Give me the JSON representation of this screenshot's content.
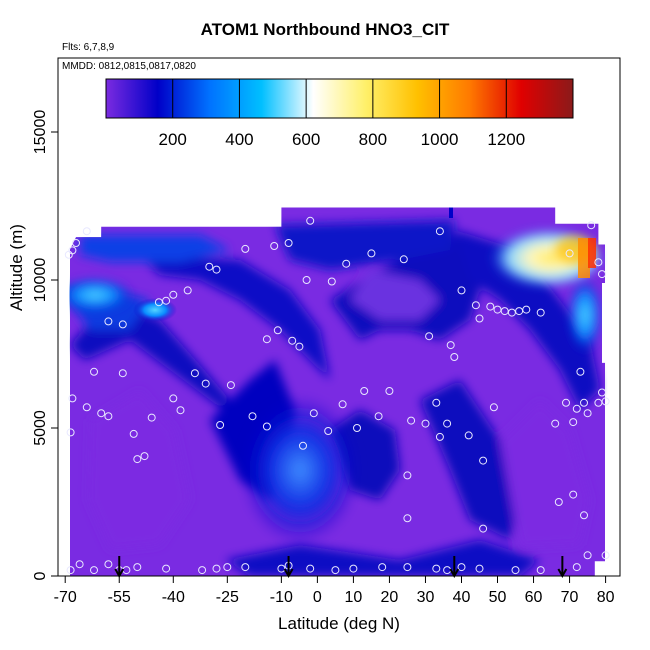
{
  "chart_data": {
    "type": "heatmap",
    "title": "ATOM1 Northbound HNO3_CIT",
    "annotations": [
      "Flts: 6,7,8,9",
      "MMDD: 0812,0815,0817,0820"
    ],
    "xlabel": "Latitude (deg N)",
    "ylabel": "Altitude (m)",
    "xlim": [
      -72,
      84
    ],
    "ylim": [
      0,
      17500
    ],
    "x_ticks": [
      -70,
      -55,
      -40,
      -25,
      -10,
      0,
      10,
      20,
      30,
      40,
      50,
      60,
      70,
      80
    ],
    "x_tick_labels": [
      "-70",
      "-55",
      "-40",
      "-25",
      "-10",
      "0",
      "10",
      "20",
      "30",
      "40",
      "50",
      "60",
      "70",
      "80"
    ],
    "y_ticks": [
      0,
      5000,
      10000,
      15000
    ],
    "y_tick_labels": [
      "0",
      "5000",
      "10000",
      "15000"
    ],
    "colorbar": {
      "range": [
        0,
        1400
      ],
      "ticks": [
        200,
        400,
        600,
        800,
        1000,
        1200
      ],
      "tick_labels": [
        "200",
        "400",
        "600",
        "800",
        "1000",
        "1200"
      ],
      "colors": [
        "#7B2BE0",
        "#0000C8",
        "#0072FF",
        "#00BFFF",
        "#FFFFFF",
        "#FFF06A",
        "#FFC000",
        "#FF7A00",
        "#E00000",
        "#8B1A1A"
      ]
    },
    "profile_markers_latitude": [
      -55,
      -8,
      38,
      68
    ],
    "sample_points": [
      [
        -68.5,
        200
      ],
      [
        -66,
        400
      ],
      [
        -62,
        200
      ],
      [
        -58,
        400
      ],
      [
        -55,
        200
      ],
      [
        -53,
        200
      ],
      [
        -50,
        300
      ],
      [
        -42,
        250
      ],
      [
        -32,
        200
      ],
      [
        -28,
        250
      ],
      [
        -25,
        300
      ],
      [
        -20,
        300
      ],
      [
        -10,
        250
      ],
      [
        -8,
        350
      ],
      [
        -2,
        250
      ],
      [
        5,
        200
      ],
      [
        10,
        250
      ],
      [
        18,
        300
      ],
      [
        25,
        300
      ],
      [
        33,
        250
      ],
      [
        36,
        200
      ],
      [
        40,
        300
      ],
      [
        45,
        250
      ],
      [
        55,
        200
      ],
      [
        62,
        200
      ],
      [
        72,
        300
      ],
      [
        75,
        700
      ],
      [
        80,
        700
      ],
      [
        -68.5,
        4850
      ],
      [
        -68,
        6000
      ],
      [
        -64,
        5700
      ],
      [
        -62,
        6900
      ],
      [
        -60,
        5500
      ],
      [
        -58,
        5400
      ],
      [
        -54,
        6850
      ],
      [
        -51,
        4800
      ],
      [
        -50,
        3950
      ],
      [
        -48,
        4050
      ],
      [
        -46,
        5350
      ],
      [
        -40,
        6000
      ],
      [
        -38,
        5600
      ],
      [
        -34,
        6850
      ],
      [
        -31,
        6500
      ],
      [
        -27,
        5100
      ],
      [
        -24,
        6450
      ],
      [
        -18,
        5400
      ],
      [
        -14,
        5050
      ],
      [
        -4,
        4400
      ],
      [
        -1,
        5500
      ],
      [
        3,
        4900
      ],
      [
        7,
        5800
      ],
      [
        11,
        5000
      ],
      [
        13,
        6250
      ],
      [
        17,
        5400
      ],
      [
        20,
        6250
      ],
      [
        26,
        5250
      ],
      [
        30,
        5150
      ],
      [
        33,
        5850
      ],
      [
        34,
        4700
      ],
      [
        36,
        5150
      ],
      [
        42,
        4750
      ],
      [
        46,
        3900
      ],
      [
        49,
        5700
      ],
      [
        66,
        5150
      ],
      [
        69,
        5850
      ],
      [
        71,
        5200
      ],
      [
        72,
        5650
      ],
      [
        74,
        5850
      ],
      [
        75,
        5500
      ],
      [
        78,
        5850
      ],
      [
        79,
        6200
      ],
      [
        80,
        5900
      ],
      [
        46,
        1600
      ],
      [
        25,
        1950
      ],
      [
        67,
        2500
      ],
      [
        71,
        2750
      ],
      [
        74,
        2050
      ],
      [
        25,
        3400
      ],
      [
        -58,
        8600
      ],
      [
        -54,
        8500
      ],
      [
        -44,
        9250
      ],
      [
        -42,
        9300
      ],
      [
        -40,
        9500
      ],
      [
        -36,
        9650
      ],
      [
        -30,
        10450
      ],
      [
        -28,
        10350
      ],
      [
        -20,
        11050
      ],
      [
        -12,
        11150
      ],
      [
        -8,
        11250
      ],
      [
        -14,
        8000
      ],
      [
        -11,
        8300
      ],
      [
        -7,
        7950
      ],
      [
        -5,
        7750
      ],
      [
        -3,
        10000
      ],
      [
        4,
        9950
      ],
      [
        8,
        10550
      ],
      [
        15,
        10900
      ],
      [
        24,
        10700
      ],
      [
        31,
        8100
      ],
      [
        34,
        11650
      ],
      [
        37,
        7800
      ],
      [
        38,
        7400
      ],
      [
        40,
        9650
      ],
      [
        44,
        9150
      ],
      [
        45,
        8700
      ],
      [
        48,
        9100
      ],
      [
        50,
        9000
      ],
      [
        52,
        8950
      ],
      [
        54,
        8900
      ],
      [
        56,
        8950
      ],
      [
        58,
        9000
      ],
      [
        62,
        8900
      ],
      [
        70,
        10900
      ],
      [
        73,
        6900
      ],
      [
        76,
        11850
      ],
      [
        78,
        10600
      ],
      [
        79,
        10200
      ],
      [
        -64,
        11650
      ],
      [
        -67,
        11250
      ],
      [
        -68,
        11000
      ],
      [
        -69,
        10850
      ],
      [
        -2,
        12000
      ]
    ]
  }
}
